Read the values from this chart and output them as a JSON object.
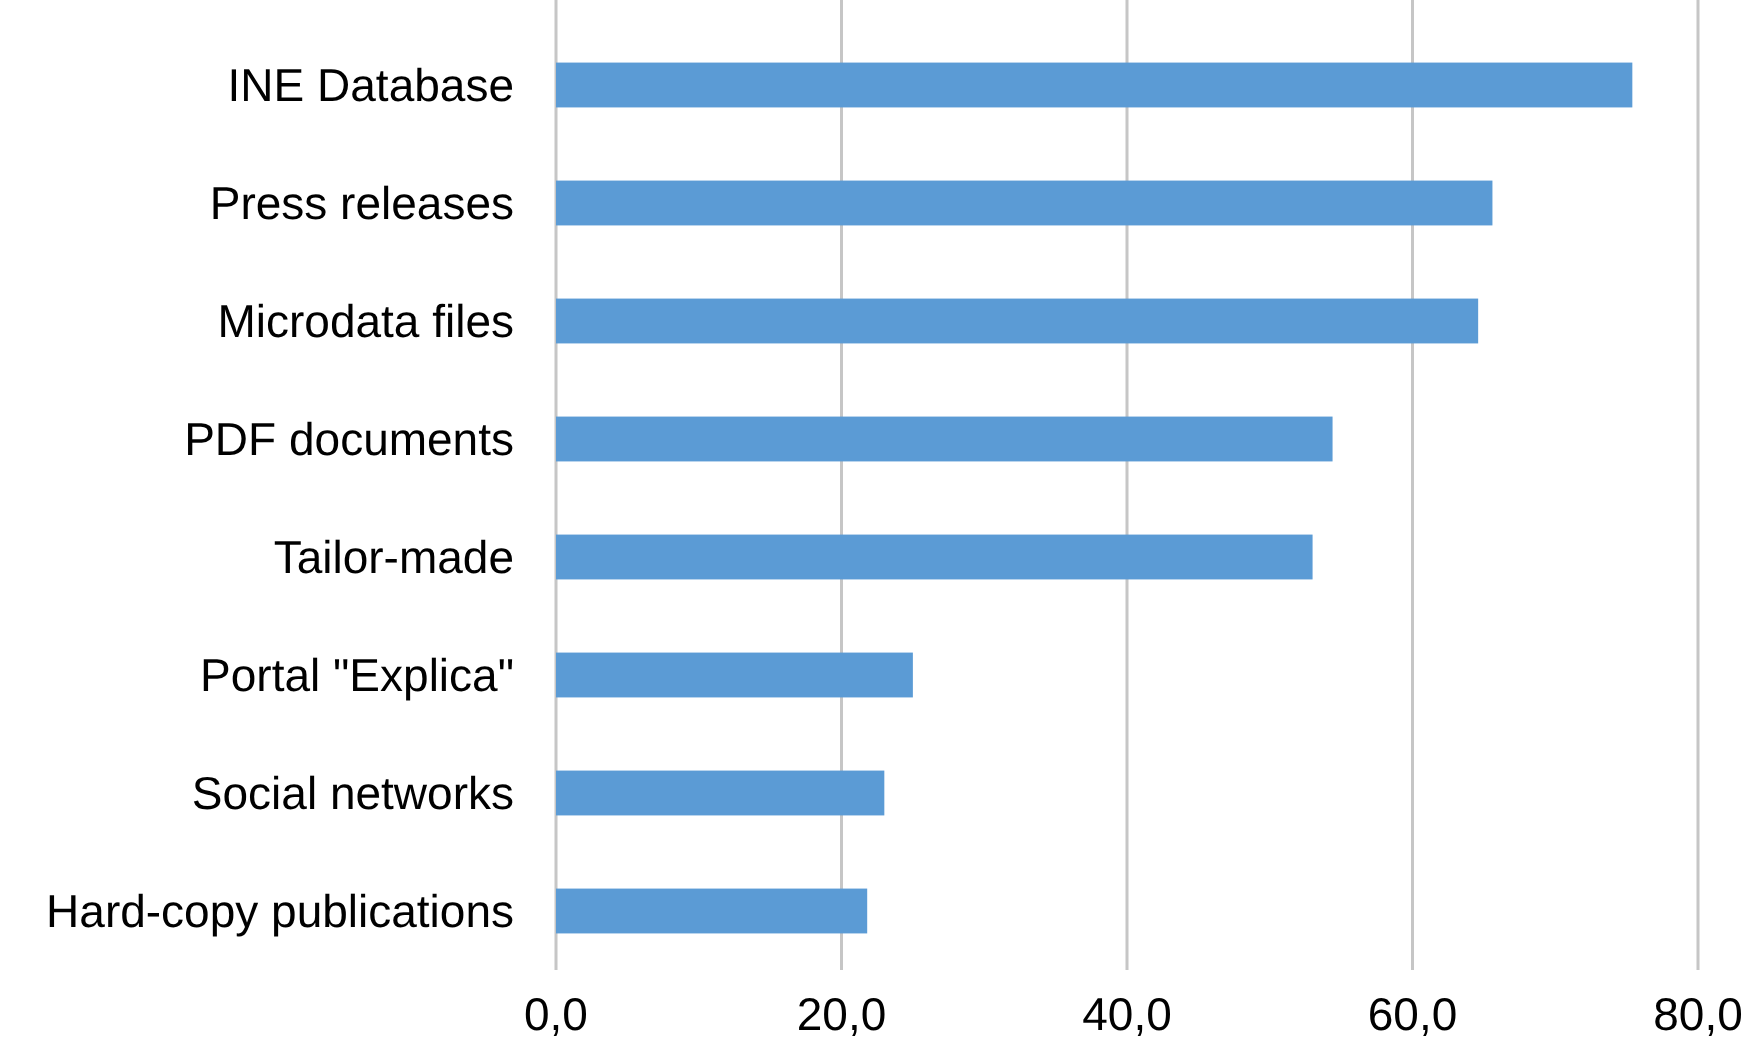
{
  "chart_data": {
    "type": "bar",
    "orientation": "horizontal",
    "categories": [
      "INE Database",
      "Press releases",
      "Microdata files",
      "PDF documents",
      "Tailor-made",
      "Portal \"Explica\"",
      "Social networks",
      "Hard-copy publications"
    ],
    "values": [
      75.4,
      65.6,
      64.6,
      54.4,
      53.0,
      25.0,
      23.0,
      21.8
    ],
    "color": "#5b9bd5",
    "xlim": [
      0,
      80
    ],
    "xticks": [
      {
        "value": 0,
        "label": "0,0"
      },
      {
        "value": 20,
        "label": "20,0"
      },
      {
        "value": 40,
        "label": "40,0"
      },
      {
        "value": 60,
        "label": "60,0"
      },
      {
        "value": 80,
        "label": "80,0"
      }
    ],
    "grid": "x"
  }
}
